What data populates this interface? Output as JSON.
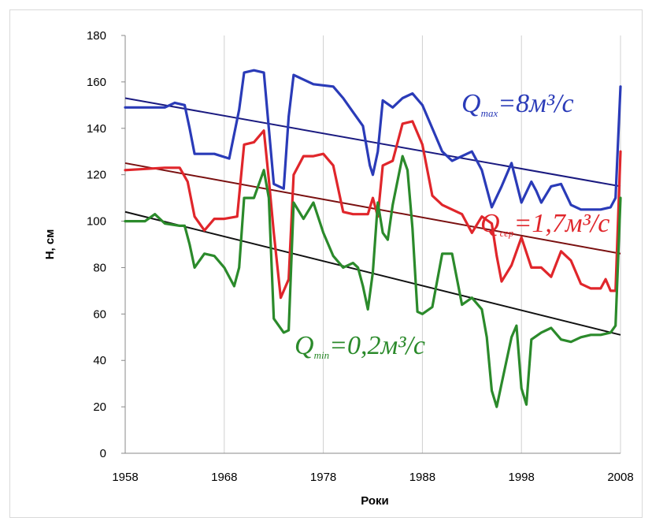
{
  "chart_data": {
    "type": "line",
    "title": "",
    "xlabel": "Роки",
    "ylabel": "Н, см",
    "xlim": [
      1958,
      2008
    ],
    "ylim": [
      0,
      180
    ],
    "x_ticks": [
      1958,
      1968,
      1978,
      1988,
      1998,
      2008
    ],
    "y_ticks": [
      0,
      20,
      40,
      60,
      80,
      100,
      120,
      140,
      160,
      180
    ],
    "grid": "vertical",
    "colors": {
      "max": "#2a3bb8",
      "mid": "#e0262b",
      "min": "#2b8a2b",
      "trend_max": "#1a1a80",
      "trend_mid": "#7a1010",
      "trend_min": "#111111"
    },
    "annotations": [
      {
        "id": "max",
        "main": "Q",
        "sub": "max",
        "rest": "=8м³/c"
      },
      {
        "id": "mid",
        "main": "Q",
        "sub": "сер",
        "rest": "=1,7м³/c"
      },
      {
        "id": "min",
        "main": "Q",
        "sub": "min",
        "rest": "=0,2м³/c"
      }
    ],
    "series": [
      {
        "id": "max",
        "color_key": "max",
        "points": [
          [
            1958,
            149
          ],
          [
            1962,
            149
          ],
          [
            1963,
            151
          ],
          [
            1964,
            150
          ],
          [
            1964.5,
            140
          ],
          [
            1965,
            129
          ],
          [
            1967,
            129
          ],
          [
            1968.5,
            127
          ],
          [
            1969.5,
            148
          ],
          [
            1970,
            164
          ],
          [
            1971,
            165
          ],
          [
            1972,
            164
          ],
          [
            1972.5,
            140
          ],
          [
            1973,
            116
          ],
          [
            1974,
            114
          ],
          [
            1974.5,
            145
          ],
          [
            1975,
            163
          ],
          [
            1976,
            161
          ],
          [
            1977,
            159
          ],
          [
            1979,
            158
          ],
          [
            1980,
            153
          ],
          [
            1981,
            147
          ],
          [
            1982,
            141
          ],
          [
            1982.7,
            124
          ],
          [
            1983,
            120
          ],
          [
            1983.5,
            130
          ],
          [
            1984,
            152
          ],
          [
            1985,
            149
          ],
          [
            1986,
            153
          ],
          [
            1987,
            155
          ],
          [
            1988,
            150
          ],
          [
            1989,
            140
          ],
          [
            1990,
            130
          ],
          [
            1991,
            126
          ],
          [
            1992,
            128
          ],
          [
            1993,
            130
          ],
          [
            1994,
            122
          ],
          [
            1995,
            106
          ],
          [
            1996,
            115
          ],
          [
            1997,
            125
          ],
          [
            1998,
            108
          ],
          [
            1999,
            117
          ],
          [
            1999.5,
            113
          ],
          [
            2000,
            108
          ],
          [
            2001,
            115
          ],
          [
            2002,
            116
          ],
          [
            2003,
            107
          ],
          [
            2004,
            105
          ],
          [
            2006,
            105
          ],
          [
            2007,
            106
          ],
          [
            2007.5,
            110
          ],
          [
            2008,
            158
          ]
        ]
      },
      {
        "id": "mid",
        "color_key": "mid",
        "points": [
          [
            1958,
            122
          ],
          [
            1962,
            123
          ],
          [
            1963.5,
            123
          ],
          [
            1964.3,
            117
          ],
          [
            1965,
            102
          ],
          [
            1966,
            96
          ],
          [
            1967,
            101
          ],
          [
            1968,
            101
          ],
          [
            1969.3,
            102
          ],
          [
            1970,
            133
          ],
          [
            1971,
            134
          ],
          [
            1972,
            139
          ],
          [
            1972.5,
            118
          ],
          [
            1973,
            95
          ],
          [
            1973.7,
            67
          ],
          [
            1974.5,
            75
          ],
          [
            1975,
            120
          ],
          [
            1976,
            128
          ],
          [
            1977,
            128
          ],
          [
            1978,
            129
          ],
          [
            1979,
            124
          ],
          [
            1980,
            104
          ],
          [
            1981,
            103
          ],
          [
            1982.5,
            103
          ],
          [
            1983,
            110
          ],
          [
            1983.5,
            102
          ],
          [
            1984,
            124
          ],
          [
            1985,
            126
          ],
          [
            1986,
            142
          ],
          [
            1987,
            143
          ],
          [
            1988,
            133
          ],
          [
            1989,
            111
          ],
          [
            1990,
            107
          ],
          [
            1991,
            105
          ],
          [
            1992,
            103
          ],
          [
            1993,
            95
          ],
          [
            1994,
            102
          ],
          [
            1995,
            99
          ],
          [
            1995.5,
            85
          ],
          [
            1996,
            74
          ],
          [
            1997,
            81
          ],
          [
            1998,
            93
          ],
          [
            1999,
            80
          ],
          [
            2000,
            80
          ],
          [
            2001,
            76
          ],
          [
            2002,
            87
          ],
          [
            2003,
            83
          ],
          [
            2004,
            73
          ],
          [
            2005,
            71
          ],
          [
            2006,
            71
          ],
          [
            2006.5,
            75
          ],
          [
            2007,
            70
          ],
          [
            2007.5,
            70
          ],
          [
            2008,
            130
          ]
        ]
      },
      {
        "id": "min",
        "color_key": "min",
        "points": [
          [
            1958,
            100
          ],
          [
            1960,
            100
          ],
          [
            1961,
            103
          ],
          [
            1962,
            99
          ],
          [
            1963.5,
            98
          ],
          [
            1964,
            98
          ],
          [
            1964.5,
            90
          ],
          [
            1965,
            80
          ],
          [
            1966,
            86
          ],
          [
            1967,
            85
          ],
          [
            1968,
            80
          ],
          [
            1969,
            72
          ],
          [
            1969.5,
            80
          ],
          [
            1970,
            110
          ],
          [
            1971,
            110
          ],
          [
            1972,
            122
          ],
          [
            1972.5,
            110
          ],
          [
            1973,
            58
          ],
          [
            1974,
            52
          ],
          [
            1974.5,
            53
          ],
          [
            1975,
            108
          ],
          [
            1976,
            101
          ],
          [
            1977,
            108
          ],
          [
            1978,
            95
          ],
          [
            1979,
            85
          ],
          [
            1980,
            80
          ],
          [
            1981,
            82
          ],
          [
            1981.5,
            80
          ],
          [
            1982,
            72
          ],
          [
            1982.5,
            62
          ],
          [
            1983,
            78
          ],
          [
            1983.5,
            108
          ],
          [
            1984,
            95
          ],
          [
            1984.5,
            92
          ],
          [
            1985,
            107
          ],
          [
            1986,
            128
          ],
          [
            1986.5,
            122
          ],
          [
            1987,
            97
          ],
          [
            1987.5,
            61
          ],
          [
            1988,
            60
          ],
          [
            1989,
            63
          ],
          [
            1990,
            86
          ],
          [
            1991,
            86
          ],
          [
            1992,
            64
          ],
          [
            1993,
            67
          ],
          [
            1994,
            62
          ],
          [
            1994.5,
            50
          ],
          [
            1995,
            27
          ],
          [
            1995.5,
            20
          ],
          [
            1996,
            30
          ],
          [
            1997,
            50
          ],
          [
            1997.5,
            55
          ],
          [
            1998,
            28
          ],
          [
            1998.5,
            21
          ],
          [
            1999,
            49
          ],
          [
            2000,
            52
          ],
          [
            2001,
            54
          ],
          [
            2002,
            49
          ],
          [
            2003,
            48
          ],
          [
            2004,
            50
          ],
          [
            2005,
            51
          ],
          [
            2006,
            51
          ],
          [
            2007,
            52
          ],
          [
            2007.5,
            55
          ],
          [
            2008,
            110
          ]
        ]
      }
    ],
    "trends": [
      {
        "id": "trend-max",
        "color_key": "trend_max",
        "x": [
          1958,
          2008
        ],
        "y": [
          153,
          115
        ]
      },
      {
        "id": "trend-mid",
        "color_key": "trend_mid",
        "x": [
          1958,
          2008
        ],
        "y": [
          125,
          86
        ]
      },
      {
        "id": "trend-min",
        "color_key": "trend_min",
        "x": [
          1958,
          2008
        ],
        "y": [
          104,
          51
        ]
      }
    ]
  }
}
